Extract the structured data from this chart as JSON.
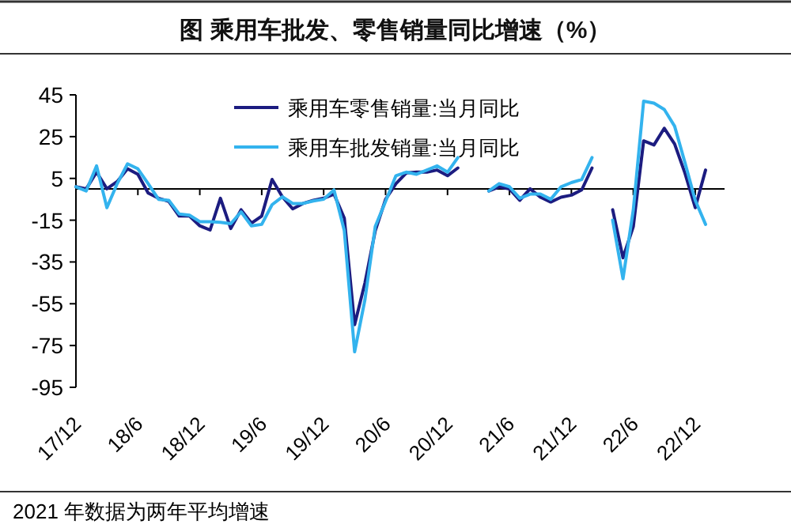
{
  "chart_data": {
    "type": "line",
    "title": "图  乘用车批发、零售销量同比增速（%）",
    "categories": [
      "17/12",
      null,
      null,
      null,
      null,
      null,
      "18/6",
      null,
      null,
      null,
      null,
      null,
      "18/12",
      null,
      null,
      null,
      null,
      null,
      "19/6",
      null,
      null,
      null,
      null,
      null,
      "19/12",
      null,
      null,
      null,
      null,
      null,
      "20/6",
      null,
      null,
      null,
      null,
      null,
      "20/12",
      null,
      null,
      null,
      null,
      null,
      "21/6",
      null,
      null,
      null,
      null,
      null,
      "21/12",
      null,
      null,
      null,
      null,
      null,
      "22/6",
      null,
      null,
      null,
      null,
      null,
      "22/12",
      null
    ],
    "series": [
      {
        "name": "乘用车零售销量:当月同比",
        "color": "#1c1c80",
        "values": [
          1,
          0,
          8,
          0,
          3.5,
          9.6,
          7,
          -2,
          -4.5,
          -6,
          -13,
          -13,
          -17.7,
          -19.7,
          -4.5,
          -19,
          -10,
          -16.4,
          -13,
          4.5,
          -3.8,
          -9.6,
          -7,
          -5.5,
          -4.5,
          -2.5,
          -14,
          -65,
          -45,
          -20,
          -5,
          2.5,
          7.6,
          8,
          8,
          9,
          6.3,
          10,
          null,
          null,
          -1,
          1,
          0,
          -5.5,
          0,
          -4,
          -6.3,
          -4,
          -3,
          -0.5,
          10,
          null,
          -10,
          -33,
          -18,
          23,
          21,
          29,
          21.5,
          7.6,
          -9,
          9
        ]
      },
      {
        "name": "乘用车批发销量:当月同比",
        "color": "#33b3ee",
        "values": [
          1,
          -1,
          11,
          -9,
          2.5,
          12,
          9.6,
          2.5,
          -5,
          -5.5,
          -12,
          -12.6,
          -15.7,
          -15.7,
          -16,
          -16.7,
          -11,
          -17.7,
          -17,
          -7.6,
          -3.8,
          -7,
          -7,
          -5.8,
          -5,
          -0.5,
          -20,
          -78,
          -53,
          -18,
          -6,
          6.3,
          8,
          7,
          9,
          11,
          8,
          15,
          null,
          null,
          -1,
          2.5,
          1,
          -4.5,
          -2.5,
          -2.5,
          -5,
          1,
          3,
          4.5,
          15,
          null,
          -15,
          -43,
          -10,
          42,
          41,
          38,
          30,
          12.6,
          -5.5,
          -17
        ]
      }
    ],
    "ylim": [
      -95,
      45
    ],
    "yticks": [
      -95,
      -75,
      -55,
      -35,
      -15,
      5,
      25,
      45
    ],
    "ref_lines": [
      {
        "axis": "y",
        "value": 0
      }
    ],
    "legend": "top",
    "grid": false,
    "marker": "none",
    "line_style": "solid",
    "annotations": [
      "2021 年数据为两年平均增速"
    ]
  }
}
